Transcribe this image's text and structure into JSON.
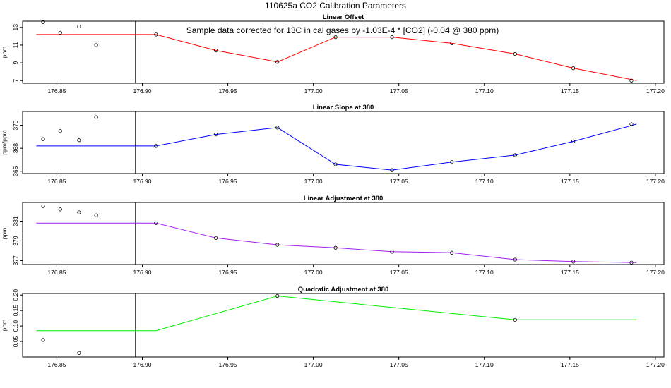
{
  "title": "110625a   CO2 Calibration Parameters",
  "chart_data": [
    {
      "type": "line",
      "title": "Linear Offset",
      "ylabel": "ppm",
      "annotation": "Sample data corrected for 13C in cal gases by -1.03E-4 * [CO2] (-0.04 @ 380 ppm)",
      "line_color": "#ff0000",
      "xlim": [
        176.83,
        177.205
      ],
      "ylim": [
        6.7,
        13.7
      ],
      "xticks": [
        "176.85",
        "176.90",
        "176.95",
        "177.00",
        "177.05",
        "177.10",
        "177.15",
        "177.20"
      ],
      "yticks": [
        "7",
        "9",
        "11",
        "13"
      ],
      "vline_x": 176.896,
      "line": {
        "x": [
          176.838,
          176.908,
          176.943,
          176.979,
          177.013,
          177.046,
          177.081,
          177.118,
          177.152,
          177.189
        ],
        "y": [
          12.2,
          12.2,
          10.4,
          9.1,
          11.9,
          11.9,
          11.2,
          10.0,
          8.4,
          7.0
        ]
      },
      "points": {
        "x": [
          176.908,
          176.943,
          176.979,
          177.013,
          177.046,
          177.081,
          177.118,
          177.152,
          177.186
        ],
        "y": [
          12.2,
          10.4,
          9.1,
          11.9,
          11.9,
          11.2,
          10.0,
          8.4,
          7.0
        ]
      },
      "outliers": {
        "x": [
          176.842,
          176.852,
          176.863,
          176.873
        ],
        "y": [
          13.6,
          12.4,
          13.1,
          11.0
        ]
      }
    },
    {
      "type": "line",
      "title": "Linear Slope at 380",
      "ylabel": "ppm/ppm",
      "line_color": "#0000ff",
      "xlim": [
        176.83,
        177.205
      ],
      "ylim": [
        365.8,
        371.2
      ],
      "xticks": [
        "176.85",
        "176.90",
        "176.95",
        "177.00",
        "177.05",
        "177.10",
        "177.15",
        "177.20"
      ],
      "yticks": [
        "366",
        "368",
        "370"
      ],
      "vline_x": 176.896,
      "line": {
        "x": [
          176.838,
          176.908,
          176.943,
          176.979,
          177.013,
          177.046,
          177.081,
          177.118,
          177.152,
          177.189
        ],
        "y": [
          368.2,
          368.2,
          369.2,
          369.8,
          366.6,
          366.1,
          366.8,
          367.4,
          368.6,
          370.1
        ]
      },
      "points": {
        "x": [
          176.908,
          176.943,
          176.979,
          177.013,
          177.046,
          177.081,
          177.118,
          177.152,
          177.186
        ],
        "y": [
          368.2,
          369.2,
          369.8,
          366.6,
          366.1,
          366.8,
          367.4,
          368.6,
          370.1
        ]
      },
      "outliers": {
        "x": [
          176.842,
          176.852,
          176.863,
          176.873
        ],
        "y": [
          368.8,
          369.5,
          368.7,
          370.7
        ]
      }
    },
    {
      "type": "line",
      "title": "Linear Adjustment at 380",
      "ylabel": "ppm",
      "line_color": "#a020f0",
      "xlim": [
        176.83,
        177.205
      ],
      "ylim": [
        376.6,
        382.9
      ],
      "xticks": [
        "176.85",
        "176.90",
        "176.95",
        "177.00",
        "177.05",
        "177.10",
        "177.15",
        "177.20"
      ],
      "yticks": [
        "377",
        "379",
        "381"
      ],
      "vline_x": 176.896,
      "line": {
        "x": [
          176.838,
          176.908,
          176.943,
          176.979,
          177.013,
          177.046,
          177.081,
          177.118,
          177.152,
          177.189
        ],
        "y": [
          380.8,
          380.8,
          379.3,
          378.6,
          378.3,
          377.9,
          377.8,
          377.1,
          376.9,
          376.8
        ]
      },
      "points": {
        "x": [
          176.908,
          176.943,
          176.979,
          177.013,
          177.046,
          177.081,
          177.118,
          177.152,
          177.186
        ],
        "y": [
          380.8,
          379.3,
          378.6,
          378.3,
          377.9,
          377.8,
          377.1,
          376.9,
          376.8
        ]
      },
      "outliers": {
        "x": [
          176.842,
          176.852,
          176.863,
          176.873
        ],
        "y": [
          382.5,
          382.2,
          381.9,
          381.6
        ]
      }
    },
    {
      "type": "line",
      "title": "Quadratic Adjustment at 380",
      "ylabel": "ppm",
      "line_color": "#00ee00",
      "xlim": [
        176.83,
        177.205
      ],
      "ylim": [
        0.0,
        0.205
      ],
      "xticks": [
        "176.85",
        "176.90",
        "176.95",
        "177.00",
        "177.05",
        "177.10",
        "177.15",
        "177.20"
      ],
      "yticks": [
        "0.05",
        "0.10",
        "0.15",
        "0.20"
      ],
      "vline_x": 176.896,
      "line": {
        "x": [
          176.838,
          176.908,
          176.979,
          177.118,
          177.189
        ],
        "y": [
          0.085,
          0.085,
          0.197,
          0.12,
          0.12
        ]
      },
      "points": {
        "x": [
          176.979,
          177.118
        ],
        "y": [
          0.197,
          0.12
        ]
      },
      "outliers": {
        "x": [
          176.842,
          176.863
        ],
        "y": [
          0.055,
          0.013
        ]
      }
    }
  ]
}
